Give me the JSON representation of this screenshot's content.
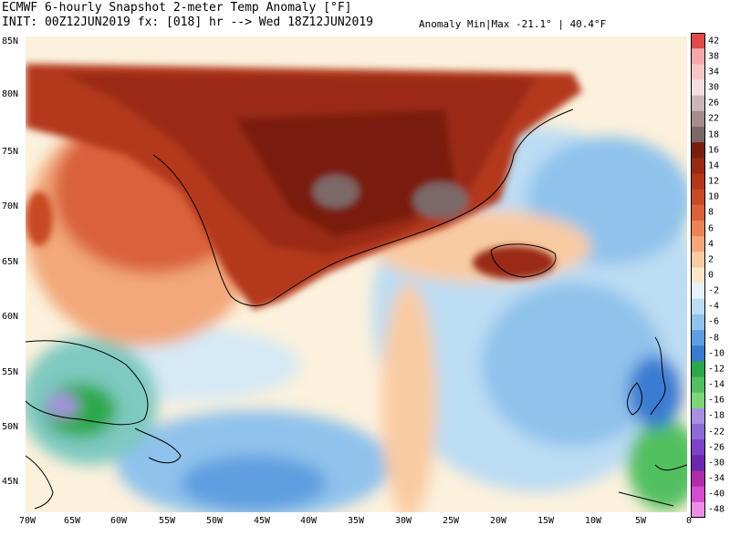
{
  "header": {
    "title_line1": "ECMWF 6-hourly Snapshot 2-meter Temp Anomaly [°F]",
    "title_line2": "INIT: 00Z12JUN2019 fx: [018] hr --> Wed 18Z12JUN2019",
    "anomaly_minmax": "Anomaly Min|Max -21.1° | 40.4°F"
  },
  "axes": {
    "lat_labels": [
      "85N",
      "80N",
      "75N",
      "70N",
      "65N",
      "60N",
      "55N",
      "50N",
      "45N"
    ],
    "lon_labels": [
      "70W",
      "65W",
      "60W",
      "55W",
      "50W",
      "45W",
      "40W",
      "35W",
      "30W",
      "25W",
      "20W",
      "15W",
      "10W",
      "5W",
      "0"
    ]
  },
  "colorbar": {
    "labels": [
      "42",
      "38",
      "34",
      "30",
      "26",
      "22",
      "18",
      "16",
      "14",
      "12",
      "10",
      "8",
      "6",
      "4",
      "2",
      "0",
      "-2",
      "-4",
      "-6",
      "-8",
      "-10",
      "-12",
      "-14",
      "-16",
      "-18",
      "-22",
      "-26",
      "-30",
      "-34",
      "-40",
      "-48"
    ],
    "colors": [
      "#e24a4a",
      "#f3a9a9",
      "#f7c7c7",
      "#f2e0e0",
      "#cbb7b7",
      "#a68d8d",
      "#7d6868",
      "#7a1f10",
      "#9a2a12",
      "#b3381a",
      "#c84a24",
      "#d9623a",
      "#ea8456",
      "#f3a77a",
      "#f9cba3",
      "#fbe8cc",
      "#e6f2fb",
      "#bcdcf3",
      "#8fc2ec",
      "#5f9ee0",
      "#3a7bd2",
      "#2aa84a",
      "#52c060",
      "#7ed67a",
      "#a88fe0",
      "#8d6bd6",
      "#7a43c8",
      "#6a28b0",
      "#b02ca8",
      "#d44ccf",
      "#ee8fe6"
    ]
  },
  "colors": {
    "warm_extreme": "#7a1f10",
    "warm": "#c84a24",
    "mild": "#f3a77a",
    "neutral": "#fbe8cc",
    "cool": "#bcdcf3",
    "cold": "#5f9ee0",
    "very_cold": "#2aa84a",
    "purple": "#a88fe0"
  }
}
